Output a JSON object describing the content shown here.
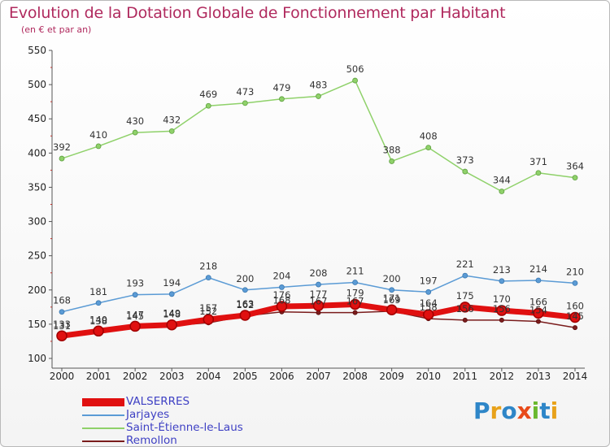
{
  "title": "Evolution de la Dotation Globale de Fonctionnement par Habitant",
  "subtitle": "(en € et par an)",
  "logo_text": "Proxiti",
  "chart_data": {
    "type": "line",
    "x": [
      "2000",
      "2001",
      "2002",
      "2003",
      "2004",
      "2005",
      "2006",
      "2007",
      "2008",
      "2009",
      "2010",
      "2011",
      "2012",
      "2013",
      "2014"
    ],
    "ylim": [
      100,
      550
    ],
    "yticks": [
      100,
      150,
      200,
      250,
      300,
      350,
      400,
      450,
      500,
      550
    ],
    "grid": false,
    "legend_position": "bottom",
    "series": [
      {
        "name": "VALSERRES",
        "color": "#e01010",
        "values": [
          133,
          140,
          147,
          149,
          157,
          163,
          176,
          177,
          179,
          171,
          164,
          175,
          170,
          166,
          160
        ],
        "labels": [
          "133",
          "140",
          "147",
          "149",
          "157",
          "163",
          "176",
          "177",
          "179",
          "171",
          "164",
          "175",
          "170",
          "166",
          "160"
        ]
      },
      {
        "name": "Jarjayes",
        "color": "#5b9bd5",
        "values": [
          168,
          181,
          193,
          194,
          218,
          200,
          204,
          208,
          211,
          200,
          197,
          221,
          213,
          214,
          210
        ],
        "labels": [
          "168",
          "181",
          "193",
          "194",
          "218",
          "200",
          "204",
          "208",
          "211",
          "200",
          "197",
          "221",
          "213",
          "214",
          "210"
        ]
      },
      {
        "name": "Saint-Étienne-le-Laus",
        "color": "#8fd16a",
        "values": [
          392,
          410,
          430,
          432,
          469,
          473,
          479,
          483,
          506,
          388,
          408,
          373,
          344,
          371,
          364
        ],
        "labels": [
          "392",
          "410",
          "430",
          "432",
          "469",
          "473",
          "479",
          "483",
          "506",
          "388",
          "408",
          "373",
          "344",
          "371",
          "364"
        ]
      },
      {
        "name": "Remollon",
        "color": "#7a1c1c",
        "values": [
          131,
          138,
          145,
          148,
          152,
          162,
          168,
          167,
          167,
          169,
          158,
          156,
          156,
          154,
          145
        ],
        "labels": [
          "131",
          "138",
          "145",
          "148",
          "152",
          "162",
          "168",
          "167",
          "167",
          "169",
          "158",
          "156",
          "156",
          "154",
          "145"
        ]
      }
    ]
  }
}
